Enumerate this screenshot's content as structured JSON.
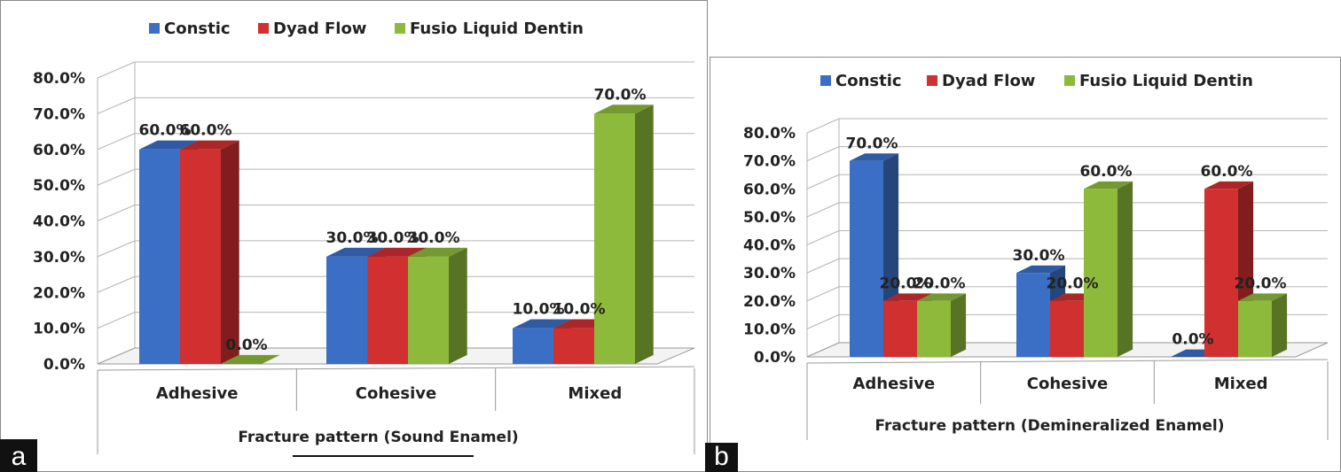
{
  "colors": {
    "constic": "#3b6fc6",
    "dyad": "#d0302f",
    "fusio": "#8dba3a"
  },
  "panels": [
    {
      "label": "a"
    },
    {
      "label": "b"
    }
  ],
  "chart_data": [
    {
      "type": "bar",
      "title": "",
      "xlabel": "Fracture pattern (Sound Enamel)",
      "ylabel": "",
      "categories": [
        "Adhesive",
        "Cohesive",
        "Mixed"
      ],
      "yticks": [
        "0.0%",
        "10.0%",
        "20.0%",
        "30.0%",
        "40.0%",
        "50.0%",
        "60.0%",
        "70.0%",
        "80.0%"
      ],
      "ylim": [
        0,
        80
      ],
      "grid": true,
      "legend_position": "top",
      "series": [
        {
          "name": "Constic",
          "values": [
            60,
            30,
            10
          ],
          "labels": [
            "60.0%",
            "30.0%",
            "10.0%"
          ]
        },
        {
          "name": "Dyad Flow",
          "values": [
            60,
            30,
            10
          ],
          "labels": [
            "60.0%",
            "30.0%",
            "10.0%"
          ]
        },
        {
          "name": "Fusio Liquid Dentin",
          "values": [
            0,
            30,
            70
          ],
          "labels": [
            "0.0%",
            "30.0%",
            "70.0%"
          ]
        }
      ]
    },
    {
      "type": "bar",
      "title": "",
      "xlabel": "Fracture pattern (Demineralized Enamel)",
      "ylabel": "",
      "categories": [
        "Adhesive",
        "Cohesive",
        "Mixed"
      ],
      "yticks": [
        "0.0%",
        "10.0%",
        "20.0%",
        "30.0%",
        "40.0%",
        "50.0%",
        "60.0%",
        "70.0%",
        "80.0%"
      ],
      "ylim": [
        0,
        80
      ],
      "grid": true,
      "legend_position": "top",
      "series": [
        {
          "name": "Constic",
          "values": [
            70,
            30,
            0
          ],
          "labels": [
            "70.0%",
            "30.0%",
            "0.0%"
          ]
        },
        {
          "name": "Dyad Flow",
          "values": [
            20,
            20,
            60
          ],
          "labels": [
            "20.0%",
            "20.0%",
            "60.0%"
          ]
        },
        {
          "name": "Fusio Liquid Dentin",
          "values": [
            20,
            60,
            20
          ],
          "labels": [
            "20.0%",
            "60.0%",
            "20.0%"
          ]
        }
      ]
    }
  ]
}
